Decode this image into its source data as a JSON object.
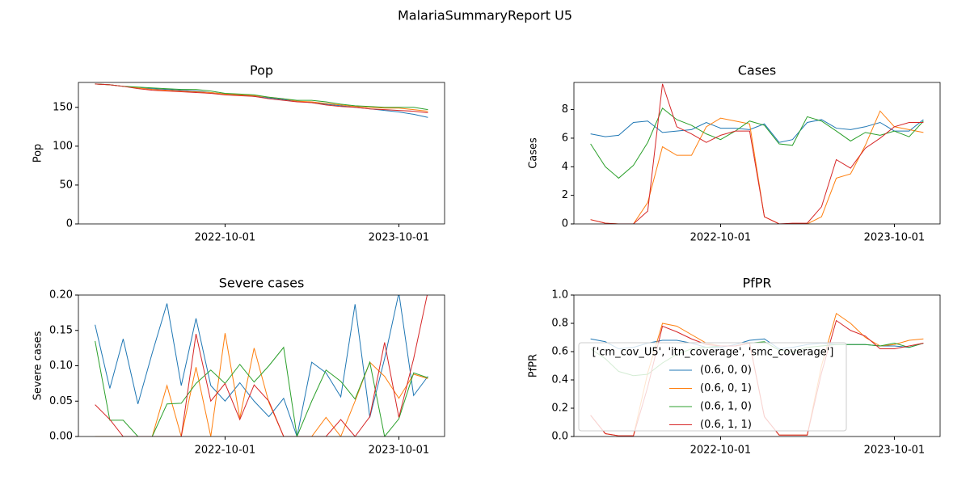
{
  "title": "MalariaSummaryReport U5",
  "chart_data": [
    {
      "type": "line",
      "title": "Pop",
      "ylabel": "Pop",
      "x": [
        "2022-01-01",
        "2022-02-01",
        "2022-03-01",
        "2022-04-01",
        "2022-05-01",
        "2022-06-01",
        "2022-07-01",
        "2022-08-01",
        "2022-09-01",
        "2022-10-01",
        "2022-11-01",
        "2022-12-01",
        "2023-01-01",
        "2023-02-01",
        "2023-03-01",
        "2023-04-01",
        "2023-05-01",
        "2023-06-01",
        "2023-07-01",
        "2023-08-01",
        "2023-09-01",
        "2023-10-01",
        "2023-11-01",
        "2023-12-01"
      ],
      "xlim": [
        "2021-11-27",
        "2024-01-05"
      ],
      "xticks": [
        "2022-10-01",
        "2023-10-01"
      ],
      "ylim": [
        0,
        182
      ],
      "yticks": [
        0,
        50,
        100,
        150
      ],
      "series": [
        {
          "color": "#1f77b4",
          "values": [
            180,
            179,
            177,
            175,
            174,
            173,
            172,
            171,
            169,
            167,
            166,
            164,
            162,
            160,
            158,
            156,
            154,
            152,
            150,
            148,
            146,
            144,
            141,
            137
          ]
        },
        {
          "color": "#ff7f0e",
          "values": [
            180,
            179,
            177,
            175,
            173,
            172,
            171,
            170,
            169,
            167,
            166,
            165,
            163,
            161,
            158,
            157,
            155,
            153,
            151,
            150,
            149,
            149,
            147,
            145
          ]
        },
        {
          "color": "#2ca02c",
          "values": [
            180,
            179,
            177,
            176,
            175,
            174,
            173,
            173,
            171,
            168,
            167,
            166,
            163,
            161,
            159,
            159,
            157,
            154,
            152,
            151,
            150,
            150,
            150,
            147
          ]
        },
        {
          "color": "#d62728",
          "values": [
            180,
            179,
            177,
            174,
            172,
            171,
            170,
            169,
            168,
            166,
            165,
            164,
            161,
            159,
            157,
            156,
            153,
            151,
            150,
            148,
            147,
            146,
            145,
            143
          ]
        }
      ]
    },
    {
      "type": "line",
      "title": "Cases",
      "ylabel": "Cases",
      "x": [
        "2022-01-01",
        "2022-02-01",
        "2022-03-01",
        "2022-04-01",
        "2022-05-01",
        "2022-06-01",
        "2022-07-01",
        "2022-08-01",
        "2022-09-01",
        "2022-10-01",
        "2022-11-01",
        "2022-12-01",
        "2023-01-01",
        "2023-02-01",
        "2023-03-01",
        "2023-04-01",
        "2023-05-01",
        "2023-06-01",
        "2023-07-01",
        "2023-08-01",
        "2023-09-01",
        "2023-10-01",
        "2023-11-01",
        "2023-12-01"
      ],
      "xlim": [
        "2021-11-27",
        "2024-01-05"
      ],
      "xticks": [
        "2022-10-01",
        "2023-10-01"
      ],
      "ylim": [
        0,
        9.9
      ],
      "yticks": [
        0,
        2,
        4,
        6,
        8
      ],
      "series": [
        {
          "color": "#1f77b4",
          "values": [
            6.3,
            6.1,
            6.2,
            7.1,
            7.2,
            6.4,
            6.5,
            6.6,
            7.1,
            6.7,
            6.7,
            6.6,
            7.0,
            5.7,
            5.9,
            7.1,
            7.3,
            6.7,
            6.6,
            6.8,
            7.1,
            6.5,
            6.5,
            7.3
          ]
        },
        {
          "color": "#ff7f0e",
          "values": [
            0.3,
            0.05,
            0,
            0,
            1.5,
            5.4,
            4.8,
            4.8,
            6.8,
            7.4,
            7.2,
            7.0,
            0.5,
            0,
            0,
            0,
            0.5,
            3.2,
            3.5,
            5.5,
            7.9,
            6.8,
            6.6,
            6.4
          ]
        },
        {
          "color": "#2ca02c",
          "values": [
            5.6,
            4.0,
            3.2,
            4.1,
            5.7,
            8.1,
            7.3,
            6.9,
            6.3,
            5.9,
            6.5,
            7.2,
            6.9,
            5.6,
            5.5,
            7.5,
            7.2,
            6.5,
            5.8,
            6.4,
            6.2,
            6.5,
            6.1,
            7.2
          ]
        },
        {
          "color": "#d62728",
          "values": [
            0.3,
            0.05,
            0,
            0,
            0.9,
            9.8,
            6.8,
            6.3,
            5.7,
            6.2,
            6.5,
            6.5,
            0.5,
            0,
            0.05,
            0.05,
            1.2,
            4.5,
            3.9,
            5.3,
            6.0,
            6.8,
            7.1,
            7.1
          ]
        }
      ]
    },
    {
      "type": "line",
      "title": "Severe cases",
      "ylabel": "Severe cases",
      "x": [
        "2022-01-01",
        "2022-02-01",
        "2022-03-01",
        "2022-04-01",
        "2022-05-01",
        "2022-06-01",
        "2022-07-01",
        "2022-08-01",
        "2022-09-01",
        "2022-10-01",
        "2022-11-01",
        "2022-12-01",
        "2023-01-01",
        "2023-02-01",
        "2023-03-01",
        "2023-04-01",
        "2023-05-01",
        "2023-06-01",
        "2023-07-01",
        "2023-08-01",
        "2023-09-01",
        "2023-10-01",
        "2023-11-01",
        "2023-12-01"
      ],
      "xlim": [
        "2021-11-27",
        "2024-01-05"
      ],
      "xticks": [
        "2022-10-01",
        "2023-10-01"
      ],
      "ylim": [
        0,
        0.2
      ],
      "yticks": [
        {
          "value": 0,
          "label": "0.00"
        },
        0.05,
        {
          "value": 0.1,
          "label": "0.10"
        },
        0.15,
        {
          "value": 0.2,
          "label": "0.20"
        }
      ],
      "series": [
        {
          "color": "#1f77b4",
          "values": [
            0.158,
            0.068,
            0.138,
            0.046,
            0.118,
            0.188,
            0.072,
            0.167,
            0.072,
            0.05,
            0.076,
            0.05,
            0.028,
            0.054,
            0,
            0.105,
            0.09,
            0.056,
            0.187,
            0.027,
            0.11,
            0.203,
            0.058,
            0.085
          ]
        },
        {
          "color": "#ff7f0e",
          "values": [
            0,
            0,
            0,
            0,
            0,
            0.072,
            0,
            0.098,
            0,
            0.146,
            0.026,
            0.125,
            0.048,
            0,
            0,
            0,
            0.027,
            0,
            0.05,
            0.105,
            0.085,
            0.054,
            0.088,
            0.082
          ]
        },
        {
          "color": "#2ca02c",
          "values": [
            0.135,
            0.023,
            0.023,
            0,
            0,
            0.046,
            0.047,
            0.075,
            0.094,
            0.075,
            0.102,
            0.077,
            0.1,
            0.126,
            0,
            0.05,
            0.094,
            0.078,
            0.053,
            0.105,
            0,
            0.025,
            0.09,
            0.083
          ]
        },
        {
          "color": "#d62728",
          "values": [
            0.045,
            0.024,
            0,
            0,
            0,
            0,
            0,
            0.145,
            0.05,
            0.075,
            0.024,
            0.073,
            0.05,
            0,
            0,
            0,
            0,
            0.024,
            0,
            0.028,
            0.133,
            0.027,
            0.11,
            0.205
          ]
        }
      ]
    },
    {
      "type": "line",
      "title": "PfPR",
      "ylabel": "PfPR",
      "x": [
        "2022-01-01",
        "2022-02-01",
        "2022-03-01",
        "2022-04-01",
        "2022-05-01",
        "2022-06-01",
        "2022-07-01",
        "2022-08-01",
        "2022-09-01",
        "2022-10-01",
        "2022-11-01",
        "2022-12-01",
        "2023-01-01",
        "2023-02-01",
        "2023-03-01",
        "2023-04-01",
        "2023-05-01",
        "2023-06-01",
        "2023-07-01",
        "2023-08-01",
        "2023-09-01",
        "2023-10-01",
        "2023-11-01",
        "2023-12-01"
      ],
      "xlim": [
        "2021-11-27",
        "2024-01-05"
      ],
      "xticks": [
        "2022-10-01",
        "2023-10-01"
      ],
      "ylim": [
        0,
        1
      ],
      "yticks": [
        {
          "value": 0,
          "label": "0.0"
        },
        0.2,
        0.4,
        0.6,
        0.8,
        {
          "value": 1,
          "label": "1.0"
        }
      ],
      "legend": "lower left",
      "legend_title": "['cm_cov_U5', 'itn_coverage', 'smc_coverage']",
      "series": [
        {
          "name": "(0.6, 0, 0)",
          "color": "#1f77b4",
          "values": [
            0.69,
            0.67,
            0.62,
            0.63,
            0.66,
            0.68,
            0.68,
            0.66,
            0.63,
            0.63,
            0.65,
            0.68,
            0.69,
            0.62,
            0.63,
            0.65,
            0.66,
            0.65,
            0.65,
            0.65,
            0.64,
            0.64,
            0.63,
            0.66
          ]
        },
        {
          "name": "(0.6, 0, 1)",
          "color": "#ff7f0e",
          "values": [
            0.15,
            0.02,
            0.005,
            0.005,
            0.45,
            0.8,
            0.78,
            0.72,
            0.66,
            0.64,
            0.64,
            0.66,
            0.14,
            0.01,
            0.01,
            0.01,
            0.5,
            0.87,
            0.8,
            0.7,
            0.64,
            0.65,
            0.68,
            0.69
          ]
        },
        {
          "name": "(0.6, 1, 0)",
          "color": "#2ca02c",
          "values": [
            0.62,
            0.55,
            0.46,
            0.43,
            0.44,
            0.52,
            0.58,
            0.62,
            0.63,
            0.64,
            0.64,
            0.66,
            0.67,
            0.61,
            0.6,
            0.63,
            0.64,
            0.65,
            0.65,
            0.65,
            0.64,
            0.66,
            0.63,
            0.66
          ]
        },
        {
          "name": "(0.6, 1, 1)",
          "color": "#d62728",
          "values": [
            0.15,
            0.02,
            0.005,
            0.005,
            0.35,
            0.78,
            0.74,
            0.69,
            0.65,
            0.64,
            0.64,
            0.66,
            0.14,
            0.01,
            0.01,
            0.01,
            0.45,
            0.82,
            0.75,
            0.71,
            0.62,
            0.62,
            0.64,
            0.66
          ]
        }
      ]
    }
  ]
}
